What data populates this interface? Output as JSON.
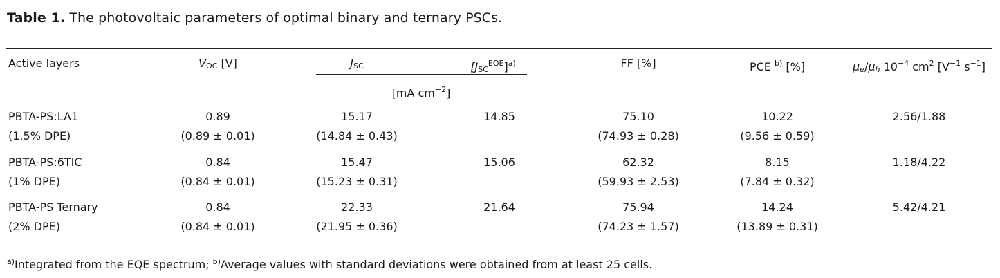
{
  "caption": {
    "label": "Table 1.",
    "text": "The photovoltaic parameters of optimal binary and ternary PSCs."
  },
  "headers": {
    "active": "Active layers",
    "voc_sym": "V",
    "voc_sub": "OC",
    "voc_unit": " [V]",
    "jsc_sym": "J",
    "jsc_sub": "SC",
    "jsceqe_open": "[J",
    "jsceqe_sub": "SC",
    "jsceqe_sup": "EQE",
    "jsceqe_close": "]",
    "jsceqe_note": "a)",
    "current_unit_pre": "[mA cm",
    "current_unit_exp": "−2",
    "current_unit_post": "]",
    "ff": "FF [%]",
    "pce": "PCE",
    "pce_note": "b)",
    "pce_unit": " [%]",
    "mob_e": "μ",
    "mob_e_sub": "e",
    "mob_slash": "/",
    "mob_h": "μ",
    "mob_h_sub": "h",
    "mob_pre": " 10",
    "mob_exp1": "−4",
    "mob_mid": " cm",
    "mob_exp2": "2",
    "mob_mid2": " [V",
    "mob_exp3": "−1",
    "mob_mid3": " s",
    "mob_exp4": "−1",
    "mob_post": "]"
  },
  "rows": [
    {
      "name": "PBTA-PS:LA1",
      "dpe": "(1.5% DPE)",
      "voc": "0.89",
      "voc_avg": "(0.89 ± 0.01)",
      "jsc": "15.17",
      "jsc_avg": "(14.84 ± 0.43)",
      "jsc_eqe": "14.85",
      "ff": "75.10",
      "ff_avg": "(74.93 ± 0.28)",
      "pce": "10.22",
      "pce_avg": "(9.56 ± 0.59)",
      "mobility": "2.56/1.88"
    },
    {
      "name": "PBTA-PS:6TIC",
      "dpe": "(1% DPE)",
      "voc": "0.84",
      "voc_avg": "(0.84 ± 0.01)",
      "jsc": "15.47",
      "jsc_avg": "(15.23 ± 0.31)",
      "jsc_eqe": "15.06",
      "ff": "62.32",
      "ff_avg": "(59.93 ± 2.53)",
      "pce": "8.15",
      "pce_avg": "(7.84 ± 0.32)",
      "mobility": "1.18/4.22"
    },
    {
      "name": "PBTA-PS Ternary",
      "dpe": "(2% DPE)",
      "voc": "0.84",
      "voc_avg": "(0.84 ± 0.01)",
      "jsc": "22.33",
      "jsc_avg": "(21.95 ± 0.36)",
      "jsc_eqe": "21.64",
      "ff": "75.94",
      "ff_avg": "(74.23 ± 1.57)",
      "pce": "14.24",
      "pce_avg": "(13.89 ± 0.31)",
      "mobility": "5.42/4.21"
    }
  ],
  "footnote": {
    "a_mark": "a)",
    "a_text": "Integrated from the EQE spectrum; ",
    "b_mark": "b)",
    "b_text": "Average values with standard deviations were obtained from at least 25 cells."
  }
}
